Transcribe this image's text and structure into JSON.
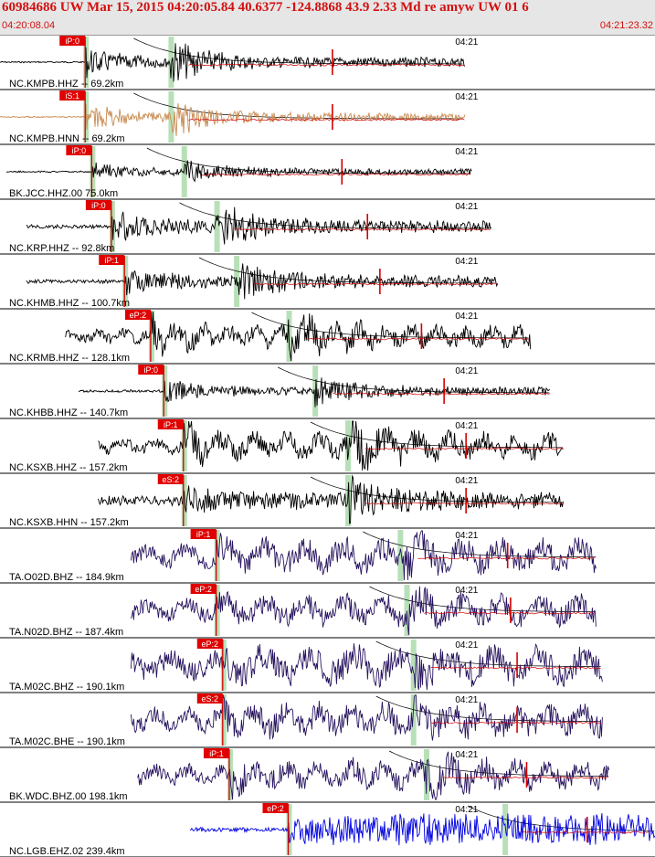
{
  "header": {
    "title": "60984686 UW Mar 15, 2015 04:20:05.84    40.6377 -124.8868 43.9 2.33 Md re amyw UW 01    6",
    "start_time": "04:20:08.04",
    "end_time": "04:21:23.32"
  },
  "chart_data": {
    "type": "line",
    "x_start": "04:20:08.04",
    "x_end": "04:21:23.32",
    "time_marker_label": "04:21",
    "traces": [
      {
        "label": "NC.KMPB.HHZ -- 69.2km",
        "color": "#000000",
        "pick": "iP:0",
        "start": 0.0,
        "end": 0.71,
        "p": 0.13,
        "s": 0.26,
        "amp": 1.0,
        "noise": 0.05,
        "period": 0.004,
        "burst_decay": 0.05,
        "tag_right": "04:21"
      },
      {
        "label": "NC.KMPB.HNN -- 69.2km",
        "color": "#c88a50",
        "pick": "iS:1",
        "start": 0.0,
        "end": 0.71,
        "p": 0.13,
        "s": 0.26,
        "amp": 0.9,
        "noise": 0.04,
        "period": 0.004,
        "burst_decay": 0.05,
        "tag_right": "04:21"
      },
      {
        "label": "BK.JCC.HHZ.00 75.0km",
        "color": "#000000",
        "pick": "iP:0",
        "start": 0.01,
        "end": 0.72,
        "p": 0.14,
        "s": 0.28,
        "amp": 0.6,
        "noise": 0.05,
        "period": 0.004,
        "burst_decay": 0.05,
        "tag_right": "04:21"
      },
      {
        "label": "NC.KRP.HHZ -- 92.8km",
        "color": "#000000",
        "pick": "iP:0",
        "start": 0.04,
        "end": 0.75,
        "p": 0.17,
        "s": 0.33,
        "amp": 1.0,
        "noise": 0.12,
        "period": 0.01,
        "burst_decay": 0.06,
        "tag_right": "04:21"
      },
      {
        "label": "NC.KHMB.HHZ -- 100.7km",
        "color": "#000000",
        "pick": "iP:1",
        "start": 0.04,
        "end": 0.76,
        "p": 0.19,
        "s": 0.36,
        "amp": 1.0,
        "noise": 0.12,
        "period": 0.006,
        "burst_decay": 0.05,
        "tag_right": "04:21"
      },
      {
        "label": "NC.KRMB.HHZ -- 128.1km",
        "color": "#000000",
        "pick": "eP:2",
        "start": 0.1,
        "end": 0.81,
        "p": 0.23,
        "s": 0.44,
        "amp": 0.9,
        "noise": 0.35,
        "period": 0.04,
        "burst_decay": 0.04,
        "tag_right": "04:21"
      },
      {
        "label": "NC.KHBB.HHZ -- 140.7km",
        "color": "#000000",
        "pick": "iP:0",
        "start": 0.12,
        "end": 0.84,
        "p": 0.25,
        "s": 0.48,
        "amp": 0.75,
        "noise": 0.08,
        "period": 0.004,
        "burst_decay": 0.05,
        "tag_right": "04:21"
      },
      {
        "label": "NC.KSXB.HHZ -- 157.2km",
        "color": "#000000",
        "pick": "iP:1",
        "start": 0.15,
        "end": 0.86,
        "p": 0.28,
        "s": 0.53,
        "amp": 1.0,
        "noise": 0.4,
        "period": 0.05,
        "burst_decay": 0.04,
        "tag_right": "04:21"
      },
      {
        "label": "NC.KSXB.HHN -- 157.2km",
        "color": "#000000",
        "pick": "eS:2",
        "start": 0.15,
        "end": 0.86,
        "p": 0.28,
        "s": 0.53,
        "amp": 1.0,
        "noise": 0.3,
        "period": 0.01,
        "burst_decay": 0.04,
        "tag_right": "04:21"
      },
      {
        "label": "TA.O02D.BHZ -- 184.9km",
        "color": "#2a1660",
        "pick": "iP:1",
        "start": 0.2,
        "end": 0.91,
        "p": 0.33,
        "s": 0.61,
        "amp": 1.0,
        "noise": 0.6,
        "period": 0.06,
        "burst_decay": 0.01,
        "tag_right": "04:21"
      },
      {
        "label": "TA.N02D.BHZ -- 187.4km",
        "color": "#2a1660",
        "pick": "eP:2",
        "start": 0.2,
        "end": 0.91,
        "p": 0.33,
        "s": 0.62,
        "amp": 0.9,
        "noise": 0.55,
        "period": 0.06,
        "burst_decay": 0.01,
        "tag_right": "04:21"
      },
      {
        "label": "TA.M02C.BHZ -- 190.1km",
        "color": "#2a1660",
        "pick": "eP:2",
        "start": 0.2,
        "end": 0.92,
        "p": 0.34,
        "s": 0.63,
        "amp": 1.0,
        "noise": 0.7,
        "period": 0.07,
        "burst_decay": 0.01,
        "tag_right": "04:21"
      },
      {
        "label": "TA.M02C.BHE -- 190.1km",
        "color": "#2a1660",
        "pick": "eS:2",
        "start": 0.2,
        "end": 0.92,
        "p": 0.34,
        "s": 0.63,
        "amp": 0.9,
        "noise": 0.6,
        "period": 0.05,
        "burst_decay": 0.01,
        "tag_right": "04:21"
      },
      {
        "label": "BK.WDC.BHZ.00 198.1km",
        "color": "#2a1660",
        "pick": "iP:1",
        "start": 0.21,
        "end": 0.93,
        "p": 0.35,
        "s": 0.65,
        "amp": 1.0,
        "noise": 0.5,
        "period": 0.05,
        "burst_decay": 0.02,
        "tag_right": "04:21"
      },
      {
        "label": "NC.LGB.EHZ.02 239.4km",
        "color": "#0000e0",
        "pick": "eP:2",
        "start": 0.29,
        "end": 1.0,
        "p": 0.44,
        "s": 0.77,
        "amp": 1.0,
        "noise": 0.15,
        "period": 0.004,
        "burst_decay": 0.0,
        "tag_right": "04:21"
      }
    ]
  }
}
